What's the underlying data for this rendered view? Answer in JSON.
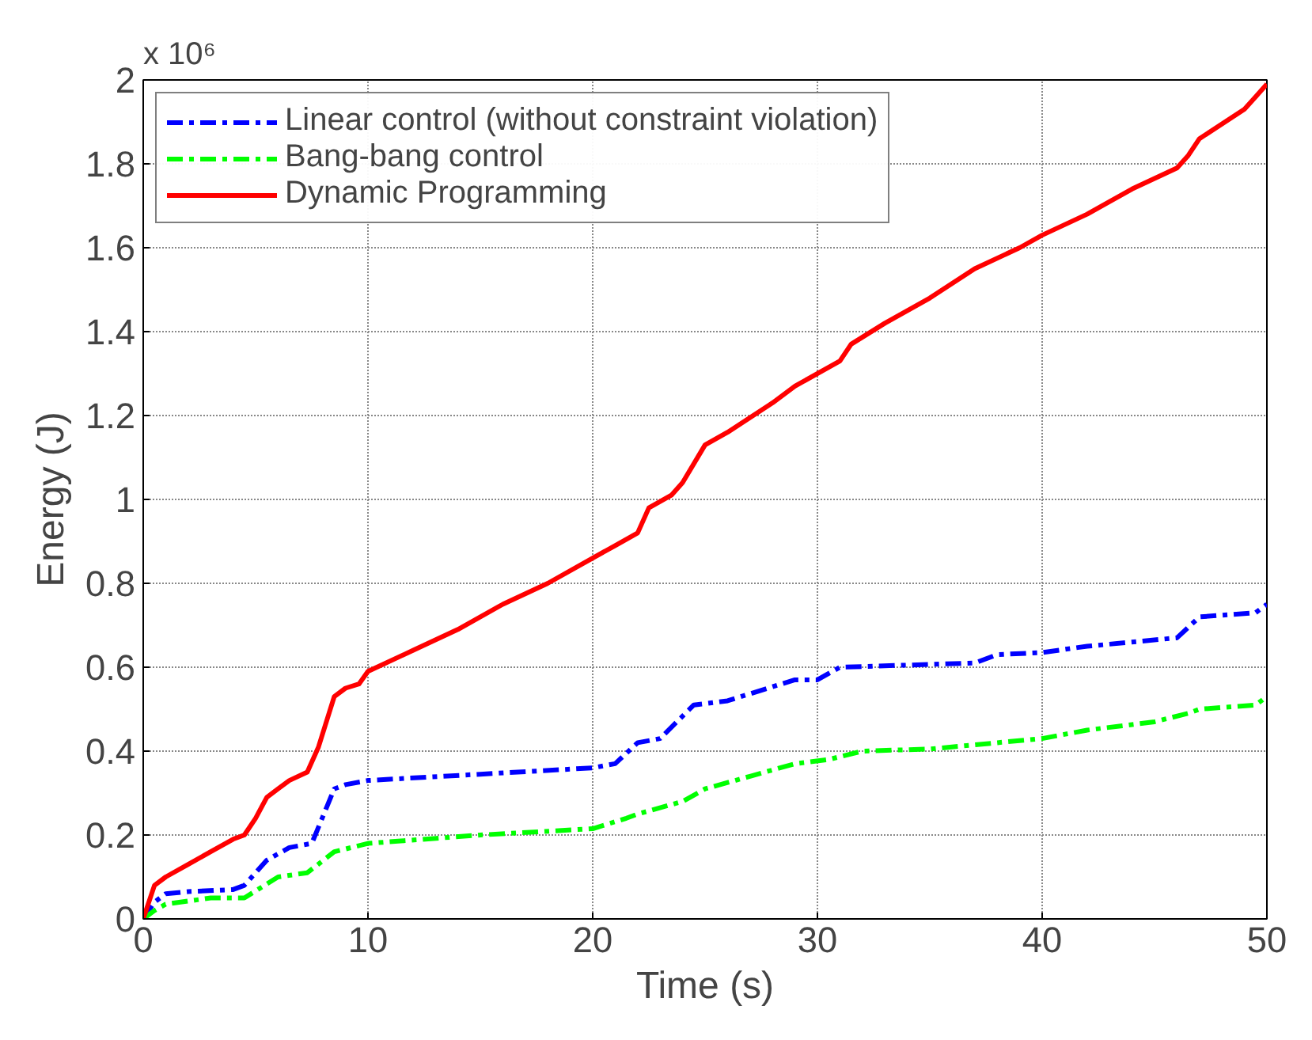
{
  "chart_data": {
    "type": "line",
    "xlabel": "Time (s)",
    "ylabel": "Energy (J)",
    "annotations": [
      "x 10⁶"
    ],
    "xlim": [
      0,
      50
    ],
    "xticks": [
      0,
      10,
      20,
      30,
      40,
      50
    ],
    "ylim": [
      0,
      2
    ],
    "yticks": [
      0,
      0.2,
      0.4,
      0.6,
      0.8,
      1,
      1.2,
      1.4,
      1.6,
      1.8,
      2
    ],
    "grid": true,
    "legend": "top left",
    "series": [
      {
        "name": "Linear control (without constraint violation)",
        "color": "#0000ff",
        "line_style": "dashdot",
        "x": [
          0,
          0.5,
          1,
          2,
          4,
          4.5,
          5.5,
          6.5,
          7.5,
          8.5,
          9,
          10,
          15,
          20,
          21,
          22,
          23,
          24.5,
          26,
          29,
          30,
          31,
          37,
          38,
          40,
          42,
          46,
          47,
          49.5,
          50
        ],
        "values": [
          0,
          0.04,
          0.06,
          0.065,
          0.07,
          0.08,
          0.14,
          0.17,
          0.18,
          0.31,
          0.32,
          0.33,
          0.345,
          0.36,
          0.37,
          0.42,
          0.43,
          0.51,
          0.52,
          0.57,
          0.57,
          0.6,
          0.61,
          0.63,
          0.635,
          0.65,
          0.67,
          0.72,
          0.73,
          0.75
        ]
      },
      {
        "name": "Bang-bang control",
        "color": "#00ff00",
        "line_style": "dashdot",
        "x": [
          0,
          0.5,
          1,
          3,
          4.5,
          6,
          7.3,
          8.5,
          10,
          15,
          20,
          21.5,
          22,
          24,
          25,
          27,
          29,
          30.5,
          32,
          35,
          38,
          40,
          42,
          45,
          46.5,
          47,
          49.5,
          50
        ],
        "values": [
          0,
          0.02,
          0.035,
          0.05,
          0.05,
          0.1,
          0.11,
          0.16,
          0.18,
          0.2,
          0.215,
          0.24,
          0.25,
          0.28,
          0.31,
          0.34,
          0.37,
          0.38,
          0.4,
          0.405,
          0.42,
          0.43,
          0.45,
          0.47,
          0.49,
          0.5,
          0.51,
          0.53
        ]
      },
      {
        "name": "Dynamic Programming",
        "color": "#ff0000",
        "line_style": "solid",
        "x": [
          0,
          0.5,
          1,
          2,
          3,
          4,
          4.5,
          5,
          5.5,
          6,
          6.5,
          7.3,
          7.8,
          8.5,
          9,
          9.6,
          10,
          12,
          14,
          16,
          18,
          20,
          21,
          22,
          22.5,
          23.5,
          24,
          25,
          26,
          28,
          29,
          31,
          31.5,
          33,
          35,
          37,
          39,
          40,
          42,
          44,
          46,
          46.5,
          47,
          49,
          49.5,
          50
        ],
        "values": [
          0,
          0.08,
          0.1,
          0.13,
          0.16,
          0.19,
          0.2,
          0.24,
          0.29,
          0.31,
          0.33,
          0.35,
          0.41,
          0.53,
          0.55,
          0.56,
          0.59,
          0.64,
          0.69,
          0.75,
          0.8,
          0.86,
          0.89,
          0.92,
          0.98,
          1.01,
          1.04,
          1.13,
          1.16,
          1.23,
          1.27,
          1.33,
          1.37,
          1.42,
          1.48,
          1.55,
          1.6,
          1.63,
          1.68,
          1.74,
          1.79,
          1.82,
          1.86,
          1.93,
          1.96,
          1.99
        ]
      }
    ]
  }
}
